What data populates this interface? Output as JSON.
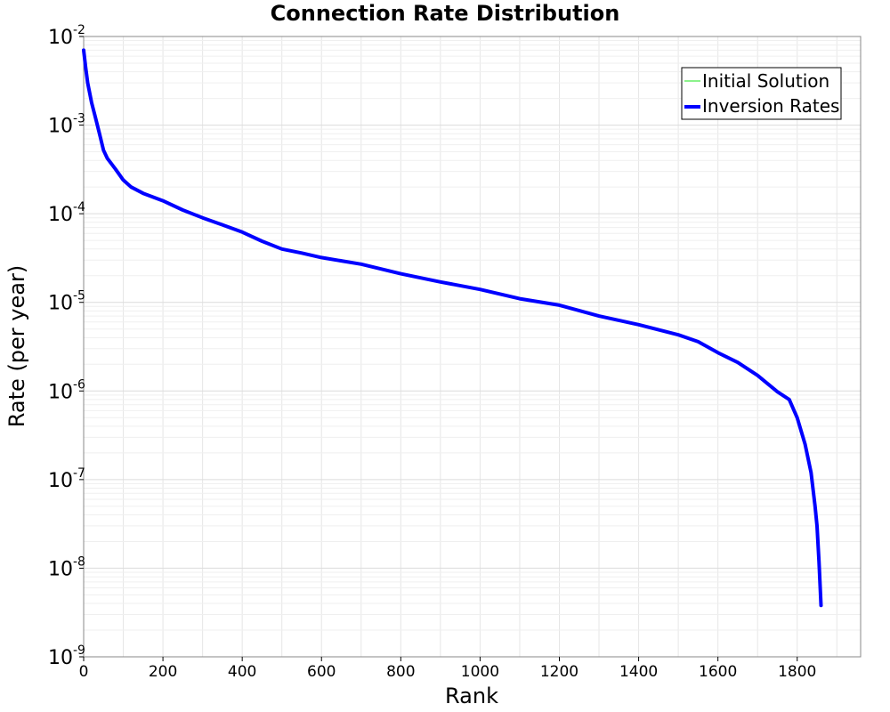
{
  "chart_data": {
    "type": "line",
    "title": "Connection Rate Distribution",
    "xlabel": "Rank",
    "ylabel": "Rate (per year)",
    "xlim": [
      0,
      1960
    ],
    "ylim": [
      1e-09,
      0.01
    ],
    "yscale": "log",
    "grid": true,
    "legend_position": "top-right",
    "x_ticks": [
      0,
      200,
      400,
      600,
      800,
      1000,
      1200,
      1400,
      1600,
      1800
    ],
    "y_ticks": [
      {
        "base": "10",
        "exp": "-2",
        "value": 0.01
      },
      {
        "base": "10",
        "exp": "-3",
        "value": 0.001
      },
      {
        "base": "10",
        "exp": "-4",
        "value": 0.0001
      },
      {
        "base": "10",
        "exp": "-5",
        "value": 1e-05
      },
      {
        "base": "10",
        "exp": "-6",
        "value": 1e-06
      },
      {
        "base": "10",
        "exp": "-7",
        "value": 1e-07
      },
      {
        "base": "10",
        "exp": "-8",
        "value": 1e-08
      },
      {
        "base": "10",
        "exp": "-9",
        "value": 1e-09
      }
    ],
    "series": [
      {
        "name": "Initial Solution",
        "color": "#66ee66",
        "points": []
      },
      {
        "name": "Inversion Rates",
        "color": "#0000ff",
        "points": [
          [
            0,
            0.007
          ],
          [
            5,
            0.0045
          ],
          [
            10,
            0.003
          ],
          [
            20,
            0.0018
          ],
          [
            30,
            0.0012
          ],
          [
            40,
            0.0008
          ],
          [
            50,
            0.00052
          ],
          [
            60,
            0.00042
          ],
          [
            80,
            0.00032
          ],
          [
            100,
            0.00024
          ],
          [
            120,
            0.0002
          ],
          [
            150,
            0.00017
          ],
          [
            200,
            0.00014
          ],
          [
            250,
            0.00011
          ],
          [
            300,
            9e-05
          ],
          [
            350,
            7.5e-05
          ],
          [
            400,
            6.2e-05
          ],
          [
            450,
            4.9e-05
          ],
          [
            500,
            4e-05
          ],
          [
            550,
            3.6e-05
          ],
          [
            600,
            3.2e-05
          ],
          [
            700,
            2.7e-05
          ],
          [
            800,
            2.1e-05
          ],
          [
            900,
            1.7e-05
          ],
          [
            1000,
            1.4e-05
          ],
          [
            1100,
            1.1e-05
          ],
          [
            1200,
            9.3e-06
          ],
          [
            1300,
            7e-06
          ],
          [
            1400,
            5.6e-06
          ],
          [
            1500,
            4.3e-06
          ],
          [
            1550,
            3.6e-06
          ],
          [
            1600,
            2.7e-06
          ],
          [
            1650,
            2.1e-06
          ],
          [
            1700,
            1.5e-06
          ],
          [
            1750,
            9.8e-07
          ],
          [
            1780,
            8e-07
          ],
          [
            1800,
            5e-07
          ],
          [
            1820,
            2.5e-07
          ],
          [
            1835,
            1.2e-07
          ],
          [
            1845,
            5e-08
          ],
          [
            1850,
            3e-08
          ],
          [
            1855,
            1.2e-08
          ],
          [
            1860,
            3.8e-09
          ]
        ]
      }
    ]
  }
}
